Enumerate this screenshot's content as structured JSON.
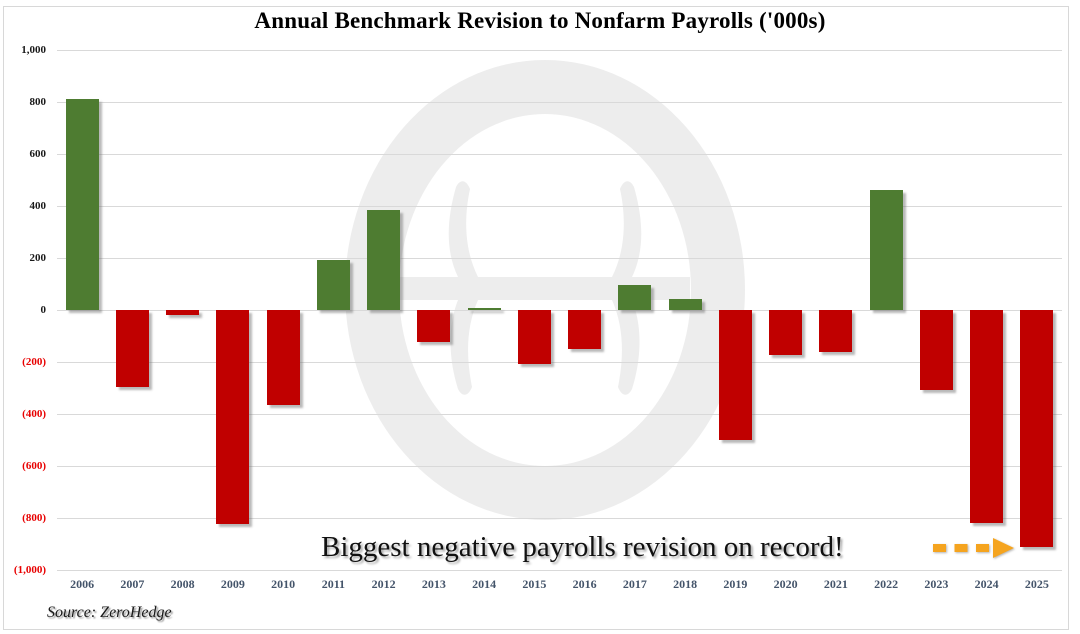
{
  "title": "Annual Benchmark Revision to Nonfarm Payrolls ('000s)",
  "source_note": "Source: ZeroHedge",
  "annotation": {
    "text": "Biggest negative payrolls revision on record!"
  },
  "colors": {
    "positive_bar": "#4e7c31",
    "negative_bar": "#c00000",
    "negative_tick_label": "#e80000",
    "positive_tick_label": "#1a1a1a",
    "year_label": "#44546a",
    "gridline": "#d9d9d9",
    "arrow": "#f5a41f",
    "watermark": "#ededed"
  },
  "chart_data": {
    "type": "bar",
    "title": "Annual Benchmark Revision to Nonfarm Payrolls ('000s)",
    "xlabel": "",
    "ylabel": "",
    "categories": [
      "2006",
      "2007",
      "2008",
      "2009",
      "2010",
      "2011",
      "2012",
      "2013",
      "2014",
      "2015",
      "2016",
      "2017",
      "2018",
      "2019",
      "2020",
      "2021",
      "2022",
      "2023",
      "2024",
      "2025"
    ],
    "values": [
      810,
      -297,
      -21,
      -824,
      -366,
      192,
      386,
      -124,
      7,
      -208,
      -150,
      95,
      43,
      -501,
      -173,
      -161,
      462,
      -306,
      -818,
      -911
    ],
    "ylim": [
      -1000,
      1000
    ],
    "ytick_step": 200,
    "ytick_labels": [
      "1,000",
      "800",
      "600",
      "400",
      "200",
      "0",
      "(200)",
      "(400)",
      "(600)",
      "(800)",
      "(1,000)"
    ],
    "grid": true,
    "legend": "none",
    "bar_color_rule": "green-if-positive-red-if-negative",
    "annotations": [
      "Biggest negative payrolls revision on record!"
    ]
  }
}
